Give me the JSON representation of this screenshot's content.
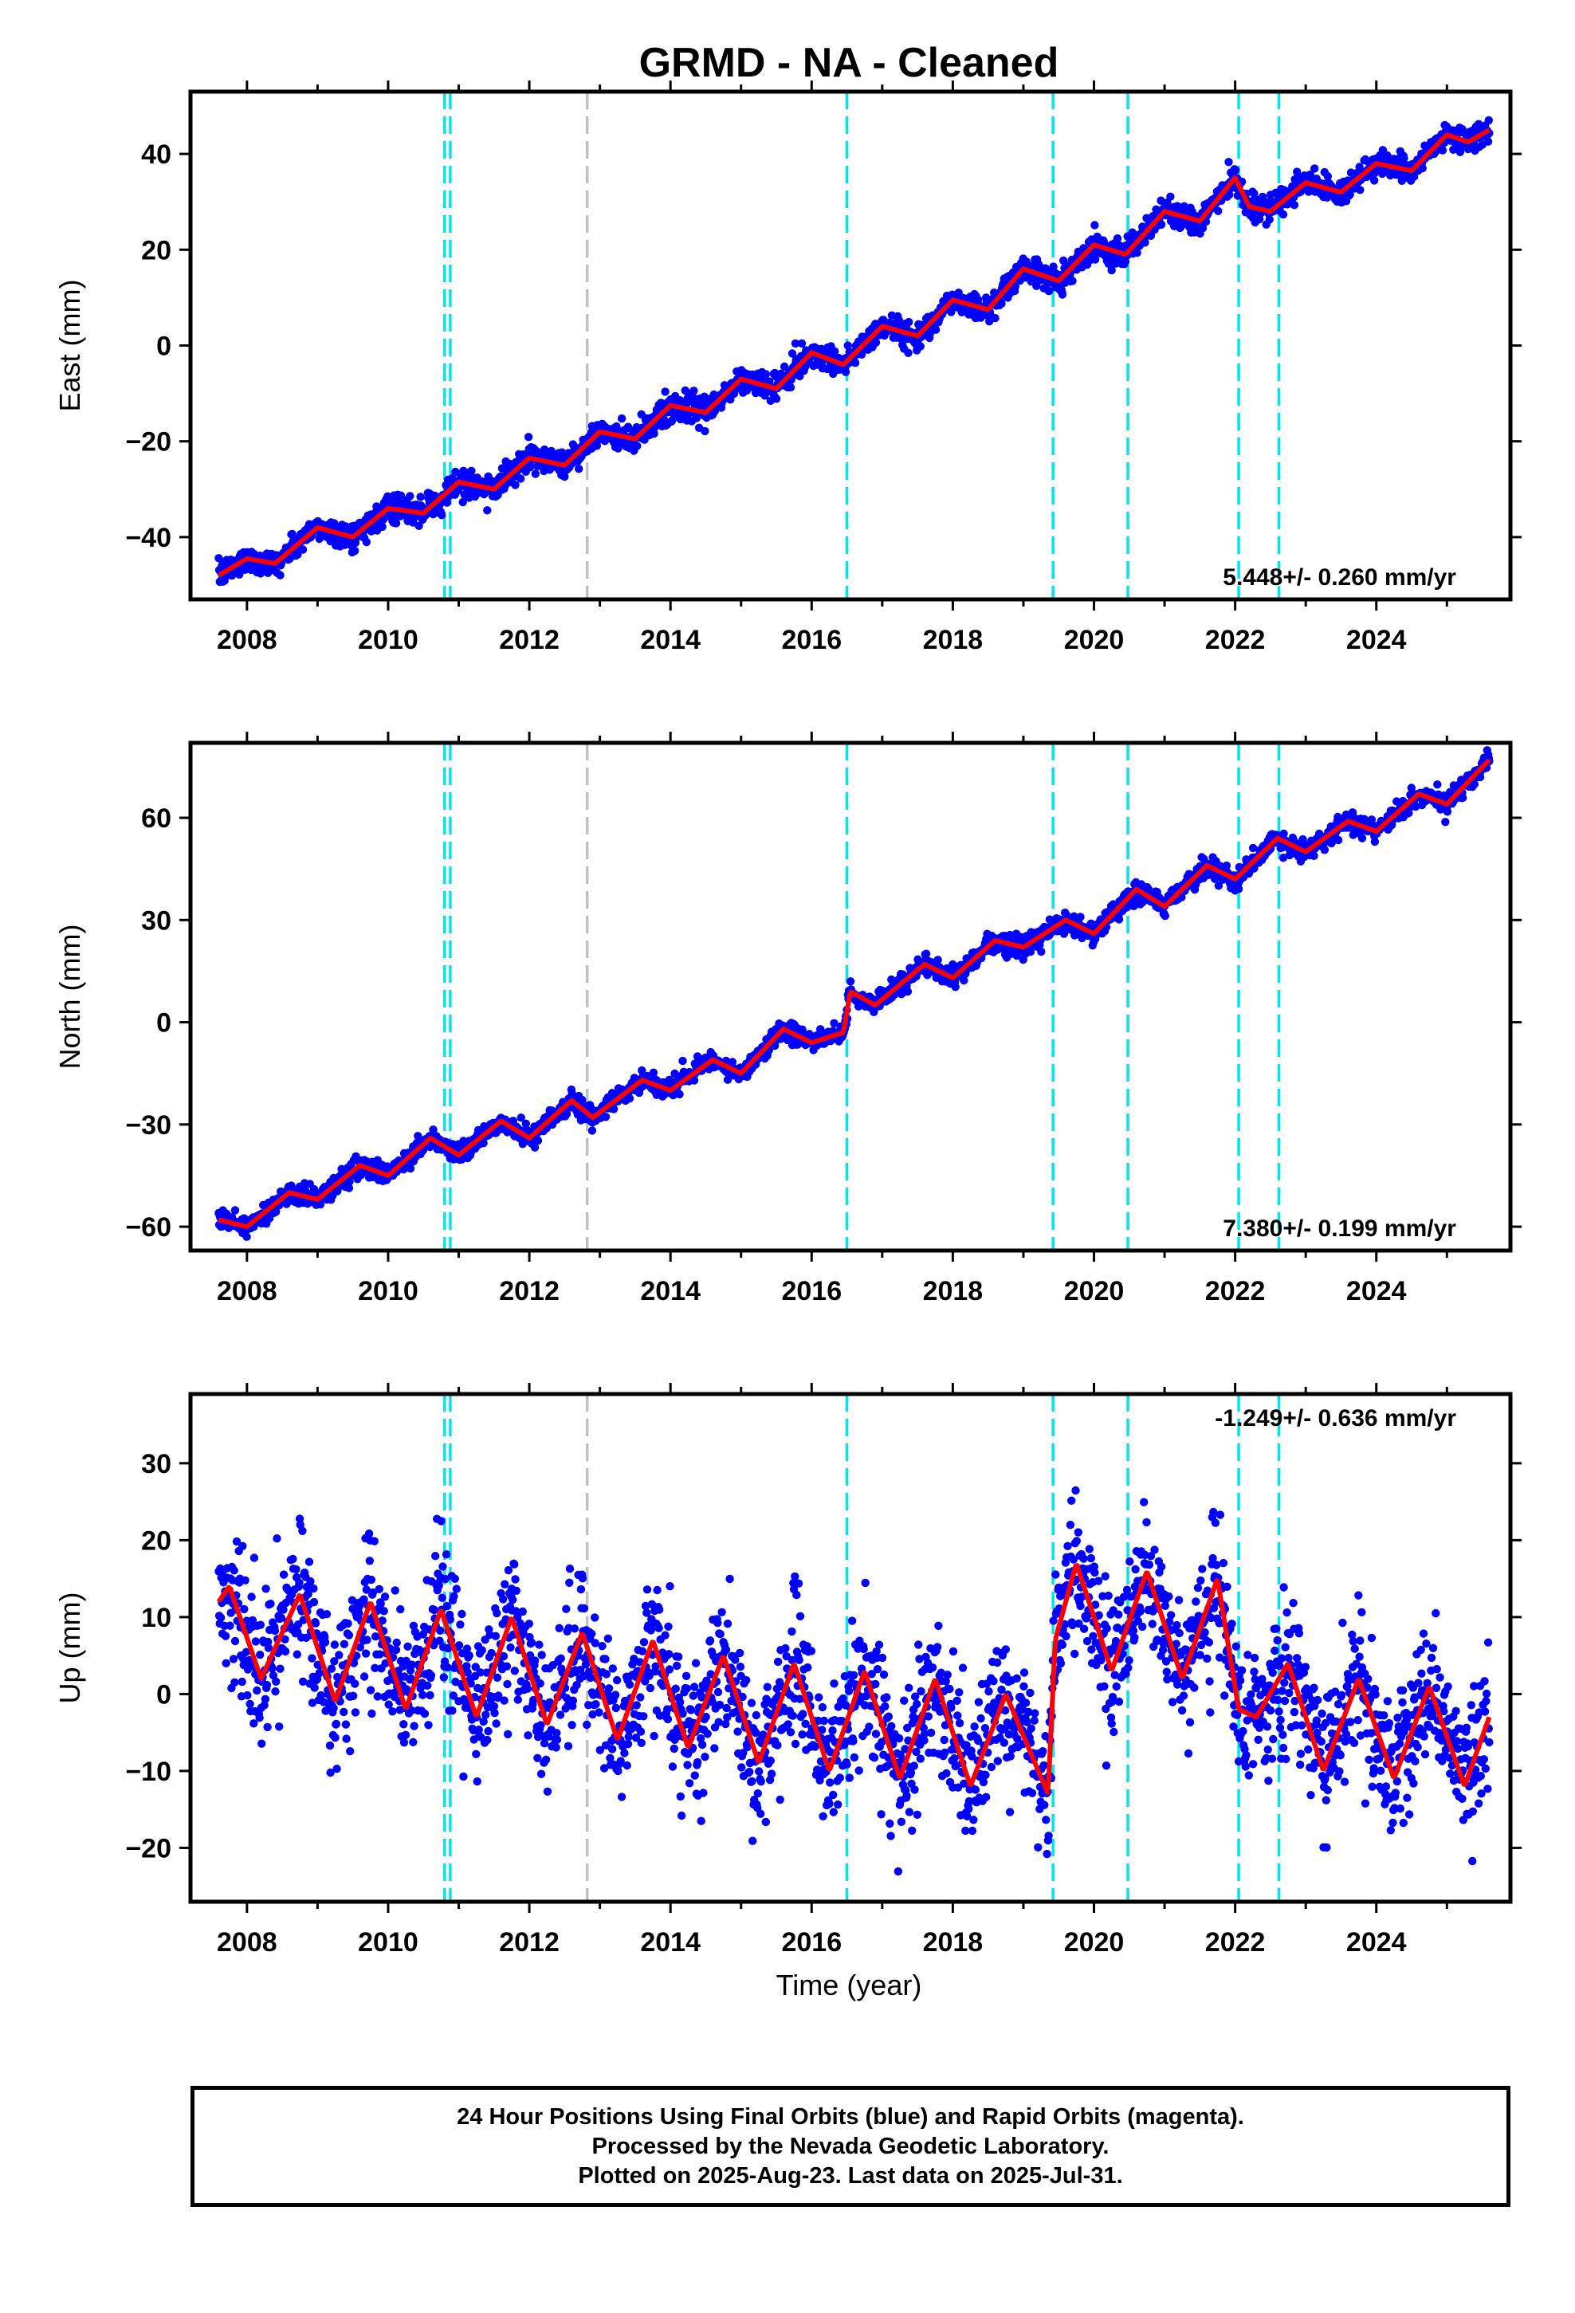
{
  "title": "GRMD  - NA - Cleaned",
  "x_axis_label": "Time (year)",
  "colors": {
    "data_points": "#0000ff",
    "model_fit": "#ff0000",
    "equipment_change_line": "#00e5ee",
    "other_event_line": "#c0c0c0",
    "frame": "#000000"
  },
  "footer": {
    "line1": "24 Hour Positions Using Final Orbits (blue) and Rapid Orbits (magenta).",
    "line2": "Processed by the Nevada Geodetic Laboratory.",
    "line3": "Plotted on 2025-Aug-23. Last data on 2025-Jul-31."
  },
  "chart_data": [
    {
      "type": "scatter",
      "ylabel": "East (mm)",
      "rate_label": "5.448+/- 0.260 mm/yr",
      "xlim": [
        2007.2,
        2025.9
      ],
      "ylim": [
        -53,
        53
      ],
      "x_ticks": [
        2008,
        2010,
        2012,
        2014,
        2016,
        2018,
        2020,
        2022,
        2024
      ],
      "y_ticks": [
        -40,
        -20,
        0,
        20,
        40
      ],
      "trend_start": [
        2007.6,
        -48
      ],
      "rate_mm_per_yr": 5.448,
      "annual_amplitude_mm": 2.2,
      "scatter_sigma_mm": 1.3,
      "offsets": [
        [
          2016.45,
          -1.0
        ],
        [
          2020.5,
          1.5
        ],
        [
          2022.2,
          -4.0
        ]
      ],
      "fit_curve": [
        [
          2007.6,
          -48
        ],
        [
          2008.0,
          -44.5
        ],
        [
          2008.4,
          -45.5
        ],
        [
          2009.0,
          -38
        ],
        [
          2009.5,
          -40
        ],
        [
          2010.0,
          -34
        ],
        [
          2010.5,
          -35
        ],
        [
          2011.0,
          -28.5
        ],
        [
          2011.5,
          -30
        ],
        [
          2012.0,
          -23.5
        ],
        [
          2012.5,
          -25
        ],
        [
          2013.0,
          -18
        ],
        [
          2013.5,
          -19.5
        ],
        [
          2014.0,
          -12.5
        ],
        [
          2014.5,
          -14
        ],
        [
          2015.0,
          -7
        ],
        [
          2015.5,
          -9
        ],
        [
          2016.0,
          -1.5
        ],
        [
          2016.45,
          -4
        ],
        [
          2017.0,
          4
        ],
        [
          2017.5,
          2
        ],
        [
          2018.0,
          9.5
        ],
        [
          2018.5,
          7.5
        ],
        [
          2019.0,
          16
        ],
        [
          2019.5,
          13.5
        ],
        [
          2020.0,
          21
        ],
        [
          2020.45,
          19
        ],
        [
          2021.0,
          28
        ],
        [
          2021.5,
          26
        ],
        [
          2022.0,
          35
        ],
        [
          2022.2,
          29
        ],
        [
          2022.5,
          28
        ],
        [
          2023.0,
          34
        ],
        [
          2023.5,
          32
        ],
        [
          2024.0,
          38
        ],
        [
          2024.5,
          36.5
        ],
        [
          2025.0,
          44
        ],
        [
          2025.3,
          42.5
        ],
        [
          2025.6,
          45
        ]
      ],
      "event_lines": [
        {
          "x": 2010.8,
          "kind": "equipment"
        },
        {
          "x": 2010.88,
          "kind": "equipment"
        },
        {
          "x": 2012.82,
          "kind": "other"
        },
        {
          "x": 2016.5,
          "kind": "equipment"
        },
        {
          "x": 2019.42,
          "kind": "equipment"
        },
        {
          "x": 2020.48,
          "kind": "equipment"
        },
        {
          "x": 2022.05,
          "kind": "equipment"
        },
        {
          "x": 2022.62,
          "kind": "equipment"
        }
      ]
    },
    {
      "type": "scatter",
      "ylabel": "North (mm)",
      "rate_label": "7.380+/- 0.199 mm/yr",
      "xlim": [
        2007.2,
        2025.9
      ],
      "ylim": [
        -67,
        82
      ],
      "x_ticks": [
        2008,
        2010,
        2012,
        2014,
        2016,
        2018,
        2020,
        2022,
        2024
      ],
      "y_ticks": [
        -60,
        -30,
        0,
        30,
        60
      ],
      "trend_start": [
        2007.6,
        -58
      ],
      "rate_mm_per_yr": 7.38,
      "annual_amplitude_mm": 2.6,
      "scatter_sigma_mm": 1.4,
      "offsets": [
        [
          2016.5,
          8.0
        ]
      ],
      "fit_curve": [
        [
          2007.6,
          -58
        ],
        [
          2008.0,
          -60
        ],
        [
          2008.6,
          -50
        ],
        [
          2009.0,
          -52
        ],
        [
          2009.6,
          -42
        ],
        [
          2010.0,
          -45
        ],
        [
          2010.6,
          -34
        ],
        [
          2011.0,
          -39
        ],
        [
          2011.6,
          -29
        ],
        [
          2012.0,
          -34
        ],
        [
          2012.6,
          -23
        ],
        [
          2012.9,
          -28
        ],
        [
          2013.6,
          -17
        ],
        [
          2014.0,
          -20
        ],
        [
          2014.6,
          -11
        ],
        [
          2015.0,
          -15
        ],
        [
          2015.6,
          -2
        ],
        [
          2016.0,
          -6
        ],
        [
          2016.45,
          -3
        ],
        [
          2016.55,
          9
        ],
        [
          2016.9,
          5
        ],
        [
          2017.6,
          17
        ],
        [
          2018.0,
          13
        ],
        [
          2018.6,
          24
        ],
        [
          2019.0,
          22
        ],
        [
          2019.6,
          30
        ],
        [
          2020.0,
          26
        ],
        [
          2020.6,
          39
        ],
        [
          2021.0,
          34
        ],
        [
          2021.6,
          46
        ],
        [
          2022.0,
          42
        ],
        [
          2022.6,
          54
        ],
        [
          2023.0,
          50
        ],
        [
          2023.6,
          59
        ],
        [
          2024.0,
          56
        ],
        [
          2024.6,
          67
        ],
        [
          2025.0,
          64
        ],
        [
          2025.6,
          77
        ]
      ],
      "event_lines": [
        {
          "x": 2010.8,
          "kind": "equipment"
        },
        {
          "x": 2010.88,
          "kind": "equipment"
        },
        {
          "x": 2012.82,
          "kind": "other"
        },
        {
          "x": 2016.5,
          "kind": "equipment"
        },
        {
          "x": 2019.42,
          "kind": "equipment"
        },
        {
          "x": 2020.48,
          "kind": "equipment"
        },
        {
          "x": 2022.05,
          "kind": "equipment"
        },
        {
          "x": 2022.62,
          "kind": "equipment"
        }
      ]
    },
    {
      "type": "scatter",
      "ylabel": "Up (mm)",
      "rate_label": "-1.249+/- 0.636 mm/yr",
      "xlim": [
        2007.2,
        2025.9
      ],
      "ylim": [
        -27,
        39
      ],
      "x_ticks": [
        2008,
        2010,
        2012,
        2014,
        2016,
        2018,
        2020,
        2022,
        2024
      ],
      "y_ticks": [
        -20,
        -10,
        0,
        10,
        20,
        30
      ],
      "trend_start": [
        2007.6,
        6
      ],
      "rate_mm_per_yr": -1.249,
      "annual_amplitude_mm": 6.5,
      "scatter_sigma_mm": 4.5,
      "offsets": [
        [
          2019.42,
          11.0
        ],
        [
          2022.05,
          -11.0
        ]
      ],
      "fit_curve": [
        [
          2007.6,
          12
        ],
        [
          2007.75,
          14
        ],
        [
          2008.2,
          2
        ],
        [
          2008.75,
          13
        ],
        [
          2009.25,
          -1
        ],
        [
          2009.75,
          12
        ],
        [
          2010.25,
          -2
        ],
        [
          2010.75,
          11
        ],
        [
          2011.25,
          -3
        ],
        [
          2011.75,
          10
        ],
        [
          2012.25,
          -4
        ],
        [
          2012.75,
          8
        ],
        [
          2013.25,
          -6
        ],
        [
          2013.75,
          7
        ],
        [
          2014.25,
          -7
        ],
        [
          2014.75,
          5
        ],
        [
          2015.25,
          -9
        ],
        [
          2015.75,
          4
        ],
        [
          2016.25,
          -10
        ],
        [
          2016.75,
          3
        ],
        [
          2017.25,
          -11
        ],
        [
          2017.75,
          2
        ],
        [
          2018.25,
          -12
        ],
        [
          2018.75,
          0
        ],
        [
          2019.35,
          -13
        ],
        [
          2019.45,
          7
        ],
        [
          2019.75,
          17
        ],
        [
          2020.25,
          3
        ],
        [
          2020.75,
          16
        ],
        [
          2021.25,
          2
        ],
        [
          2021.75,
          15
        ],
        [
          2022.05,
          -2
        ],
        [
          2022.3,
          -3
        ],
        [
          2022.75,
          4
        ],
        [
          2023.25,
          -10
        ],
        [
          2023.75,
          2
        ],
        [
          2024.25,
          -11
        ],
        [
          2024.75,
          1
        ],
        [
          2025.25,
          -12
        ],
        [
          2025.6,
          -3
        ]
      ],
      "event_lines": [
        {
          "x": 2010.8,
          "kind": "equipment"
        },
        {
          "x": 2010.88,
          "kind": "equipment"
        },
        {
          "x": 2012.82,
          "kind": "other"
        },
        {
          "x": 2016.5,
          "kind": "equipment"
        },
        {
          "x": 2019.42,
          "kind": "equipment"
        },
        {
          "x": 2020.48,
          "kind": "equipment"
        },
        {
          "x": 2022.05,
          "kind": "equipment"
        },
        {
          "x": 2022.62,
          "kind": "equipment"
        }
      ]
    }
  ]
}
